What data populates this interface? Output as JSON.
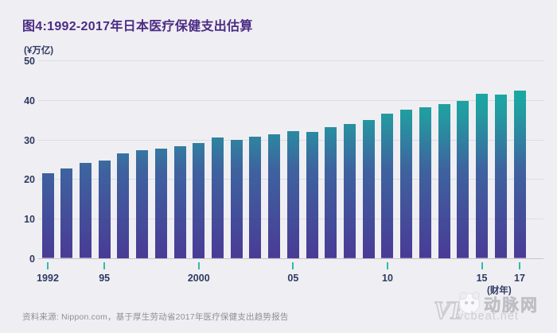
{
  "title": "图4:1992-2017年日本医疗保健支出估算",
  "y_axis": {
    "unit": "(¥万亿)",
    "ticks": [
      0,
      10,
      20,
      30,
      40,
      50
    ]
  },
  "x_axis": {
    "unit": "(财年)",
    "labels": [
      {
        "at": 1992,
        "text": "1992"
      },
      {
        "at": 1995,
        "text": "95"
      },
      {
        "at": 2000,
        "text": "2000"
      },
      {
        "at": 2005,
        "text": "05"
      },
      {
        "at": 2010,
        "text": "10"
      },
      {
        "at": 2015,
        "text": "15"
      },
      {
        "at": 2017,
        "text": "17"
      }
    ]
  },
  "source": "资料来源: Nippon.com，基于厚生劳动省2017年医疗保健支出趋势报告",
  "watermark": {
    "name": "动脉网",
    "site": "vcbeat.net",
    "logo": "VB"
  },
  "colors": {
    "background": "#efeef2",
    "title": "#4b2b86",
    "axis_text": "#2e3a63",
    "gridline": "#dcdce0",
    "baseline": "#c5c5cb",
    "tick": "#2ebcab",
    "source_text": "#909095",
    "watermark": "#c5c5cb",
    "bar_gradient_bottom": "#493b96",
    "bar_gradient_mid_blue": "#3e639f",
    "bar_gradient_mid_teal": "#239aa1",
    "bar_gradient_top": "#0cbaa4"
  },
  "chart_data": {
    "type": "bar",
    "title": "图4:1992-2017年日本医疗保健支出估算",
    "xlabel": "(财年)",
    "ylabel": "(¥万亿)",
    "ylim": [
      0,
      50
    ],
    "yticks": [
      0,
      10,
      20,
      30,
      40,
      50
    ],
    "grid": true,
    "legend": false,
    "x": [
      1992,
      1993,
      1994,
      1995,
      1996,
      1997,
      1998,
      1999,
      2000,
      2001,
      2002,
      2003,
      2004,
      2005,
      2006,
      2007,
      2008,
      2009,
      2010,
      2011,
      2012,
      2013,
      2014,
      2015,
      2016,
      2017
    ],
    "values": [
      21.4,
      22.6,
      24.0,
      24.8,
      26.6,
      27.3,
      27.8,
      28.4,
      29.2,
      30.5,
      29.9,
      30.8,
      31.3,
      32.2,
      32.0,
      33.1,
      33.9,
      35.0,
      36.5,
      37.5,
      38.1,
      39.0,
      39.7,
      41.5,
      41.3,
      42.3
    ]
  }
}
